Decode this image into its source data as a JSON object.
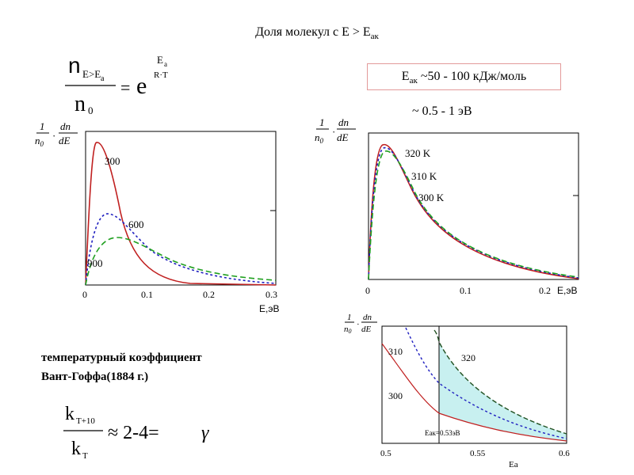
{
  "title": {
    "prefix": "Доля молекул с E > E",
    "sub": "ак"
  },
  "formula_top": {
    "numerator": "n",
    "numerator_sub": "E>E",
    "numerator_sub2": "a",
    "denominator": "n",
    "denominator_sub": "0",
    "equals": "=",
    "base": "e",
    "exp_num": "E",
    "exp_num_sub": "a",
    "exp_den": "R·T"
  },
  "ea_box": {
    "prefix": "E",
    "sub": "ак",
    "text": " ~50 - 100 кДж/моль"
  },
  "ev_range": "~ 0.5 - 1 эВ",
  "coefficient": {
    "line1": "температурный коэффициент",
    "line2": "Вант-Гоффа(1884 г.)"
  },
  "formula_bottom": {
    "numerator": "k",
    "numerator_sub": "T+10",
    "denominator": "k",
    "denominator_sub": "T",
    "expr": "≈ 2-4=",
    "gamma": "γ"
  },
  "chart_data": [
    {
      "type": "line",
      "ylabel": "1/n0 · dn/dE",
      "xlabel": "E,эВ",
      "xlim": [
        0,
        0.3
      ],
      "x_ticks": [
        "0",
        "0.1",
        "0.2",
        "0.3"
      ],
      "series": [
        {
          "name": "300",
          "color": "#c02020",
          "style": "solid"
        },
        {
          "name": "600",
          "color": "#2020c0",
          "style": "dotted"
        },
        {
          "name": "900",
          "color": "#20a020",
          "style": "dashed"
        }
      ]
    },
    {
      "type": "line",
      "ylabel": "1/n0 · dn/dE",
      "xlabel": "E,эВ",
      "xlim": [
        0,
        0.2
      ],
      "x_ticks": [
        "0",
        "0.1",
        "0.2"
      ],
      "series": [
        {
          "name": "320 K",
          "color": "#20a020",
          "style": "dashed"
        },
        {
          "name": "310 K",
          "color": "#2020c0",
          "style": "dotted"
        },
        {
          "name": "300 K",
          "color": "#c02020",
          "style": "solid"
        }
      ]
    },
    {
      "type": "area",
      "ylabel": "1/n0 · dn/dE",
      "xlabel": "Ea",
      "xlim": [
        0.5,
        0.6
      ],
      "x_ticks": [
        "0.5",
        "0.55",
        "0.6"
      ],
      "marker": {
        "label": "Eак=0.53эВ",
        "x": 0.53
      },
      "series": [
        {
          "name": "310",
          "color": "#2020c0",
          "style": "dotted"
        },
        {
          "name": "320",
          "color": "#20a020",
          "style": "dashed"
        },
        {
          "name": "300",
          "color": "#c02020",
          "style": "solid"
        }
      ]
    }
  ]
}
